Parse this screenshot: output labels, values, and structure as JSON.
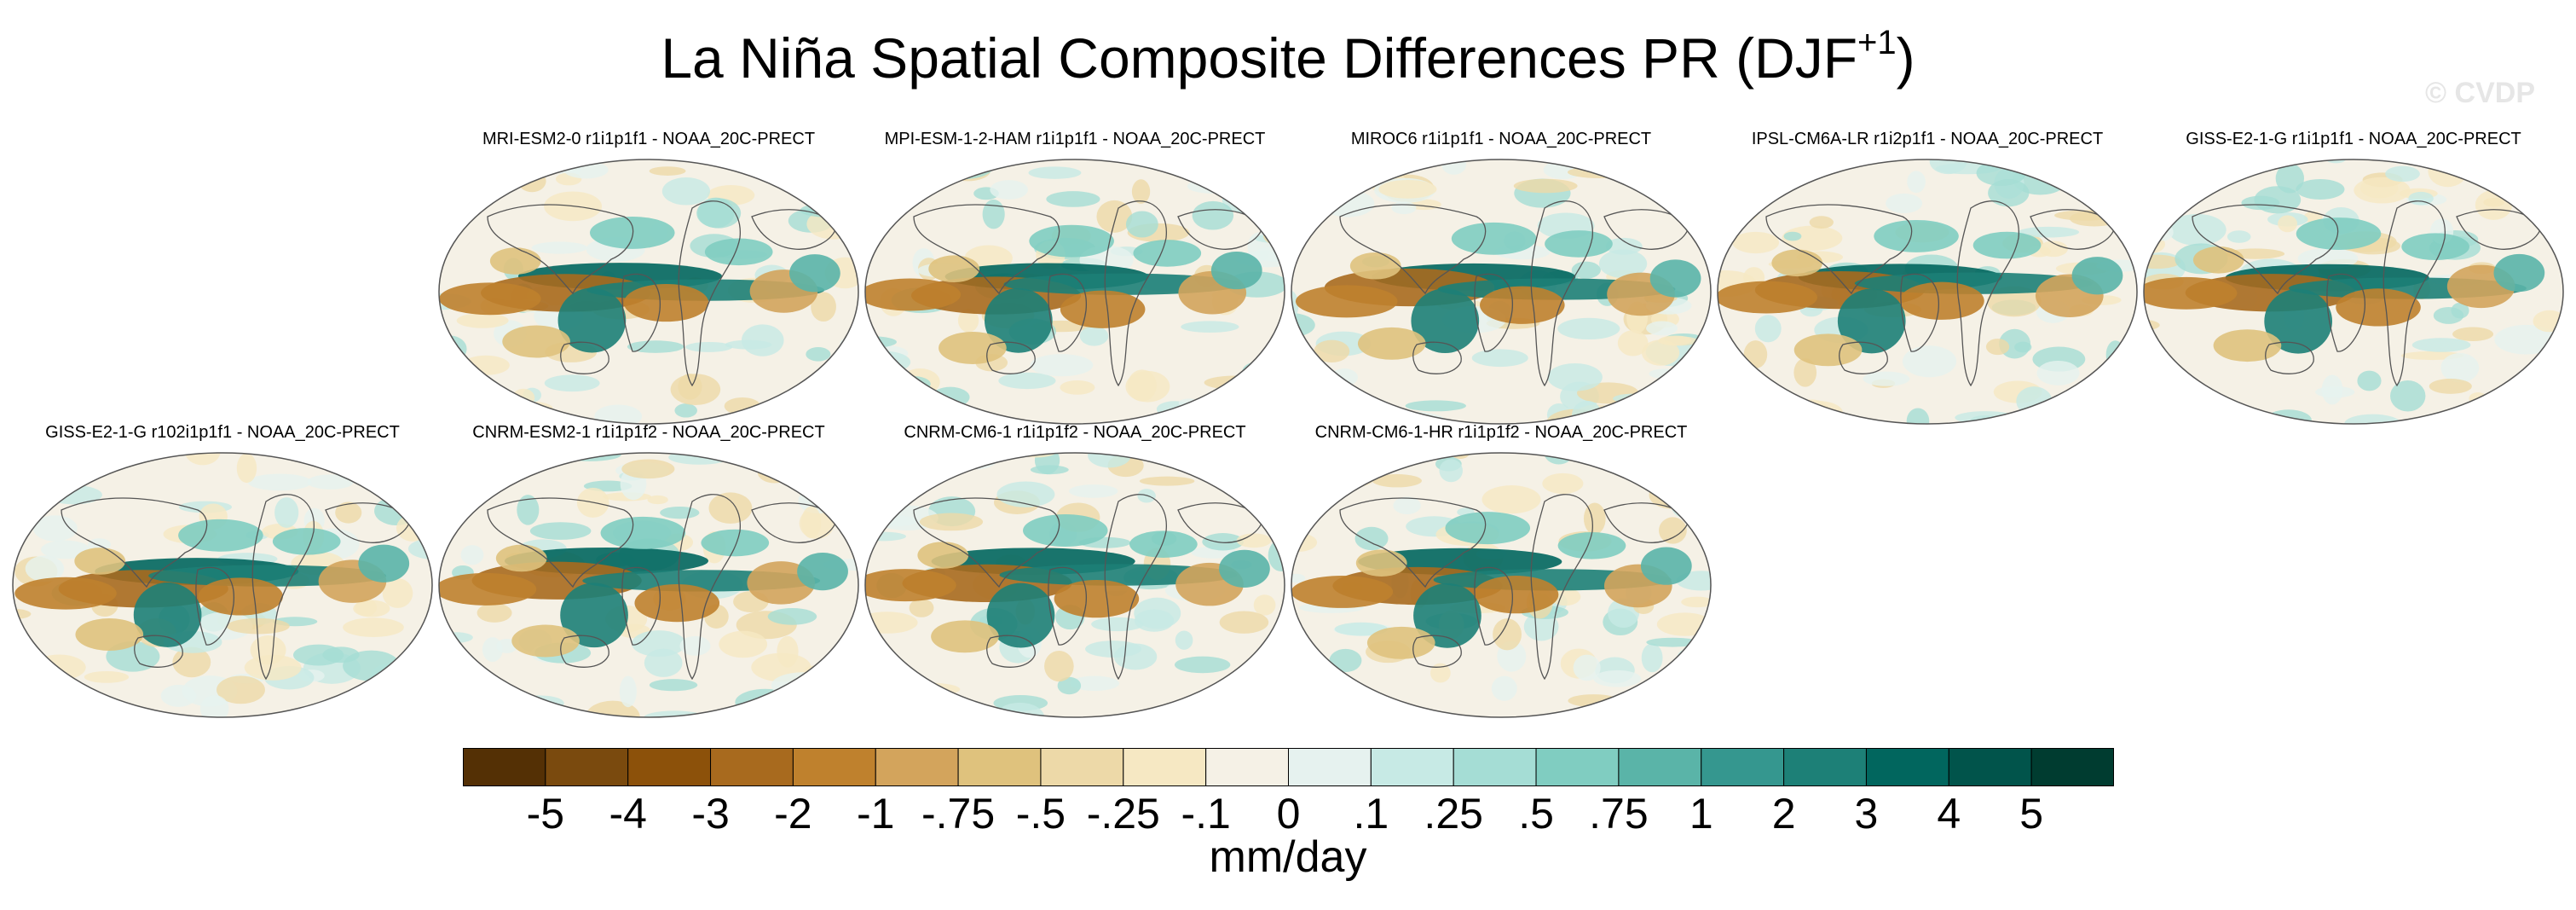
{
  "figure": {
    "title_main": "La Niña Spatial Composite Differences PR (DJF",
    "title_sup": "+1",
    "title_close": ")",
    "watermark": "© CVDP",
    "units": "mm/day"
  },
  "chart_data": {
    "type": "heatmap",
    "variable": "PR",
    "season": "DJF+1",
    "projection": "Robinson global map",
    "panels": [
      {
        "label": "MRI-ESM2-0 r1i1p1f1 - NOAA_20C-PRECT"
      },
      {
        "label": "MPI-ESM-1-2-HAM r1i1p1f1 - NOAA_20C-PRECT"
      },
      {
        "label": "MIROC6 r1i1p1f1 - NOAA_20C-PRECT"
      },
      {
        "label": "IPSL-CM6A-LR r1i2p1f1 - NOAA_20C-PRECT"
      },
      {
        "label": "GISS-E2-1-G r1i1p1f1 - NOAA_20C-PRECT"
      },
      {
        "label": "GISS-E2-1-G r102i1p1f1 - NOAA_20C-PRECT"
      },
      {
        "label": "CNRM-ESM2-1 r1i1p1f2 - NOAA_20C-PRECT"
      },
      {
        "label": "CNRM-CM6-1 r1i1p1f2 - NOAA_20C-PRECT"
      },
      {
        "label": "CNRM-CM6-1-HR r1i1p1f2 - NOAA_20C-PRECT"
      }
    ],
    "colorbar": {
      "labels": [
        "-5",
        "-4",
        "-3",
        "-2",
        "-1",
        "-.75",
        "-.5",
        "-.25",
        "-.1",
        "0",
        ".1",
        ".25",
        ".5",
        ".75",
        "1",
        "2",
        "3",
        "4",
        "5"
      ],
      "colors": [
        "#543005",
        "#7a4a0e",
        "#8c510a",
        "#a86a1e",
        "#bf812d",
        "#d3a45c",
        "#dfc27d",
        "#edd9a8",
        "#f6e8c3",
        "#f5f1e6",
        "#e6f2ef",
        "#c7eae5",
        "#a5ddd5",
        "#80cdc1",
        "#5ab4a8",
        "#35978f",
        "#1d8077",
        "#01665e",
        "#01544b",
        "#003c30"
      ]
    }
  }
}
